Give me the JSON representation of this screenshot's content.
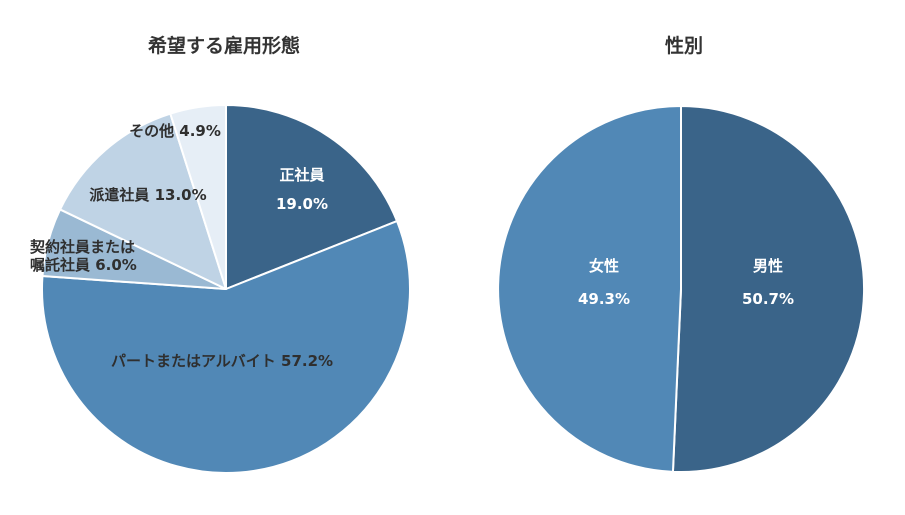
{
  "chart_data": [
    {
      "type": "pie",
      "title": "希望する雇用形態",
      "slices": [
        {
          "label_lines": [
            "正社員",
            "19.0%"
          ],
          "value": 19.0,
          "color": "#3a6489",
          "text_color": "#ffffff"
        },
        {
          "label_lines": [
            "パートまたはアルバイト 57.2%"
          ],
          "value": 57.2,
          "color": "#5188b6",
          "text_color": "#2f2f2f"
        },
        {
          "label_lines": [
            "契約社員または",
            "嘱託社員 6.0%"
          ],
          "value": 6.0,
          "color": "#9ab9d3",
          "text_color": "#2f2f2f"
        },
        {
          "label_lines": [
            "派遣社員 13.0%"
          ],
          "value": 13.0,
          "color": "#bfd3e5",
          "text_color": "#2f2f2f"
        },
        {
          "label_lines": [
            "その他 4.9%"
          ],
          "value": 4.9,
          "color": "#e6eef6",
          "text_color": "#2f2f2f"
        }
      ]
    },
    {
      "type": "pie",
      "title": "性別",
      "slices": [
        {
          "label_lines": [
            "男性",
            "50.7%"
          ],
          "value": 50.7,
          "color": "#3a6489",
          "text_color": "#ffffff"
        },
        {
          "label_lines": [
            "女性",
            "49.3%"
          ],
          "value": 49.3,
          "color": "#5188b6",
          "text_color": "#ffffff"
        }
      ]
    }
  ]
}
